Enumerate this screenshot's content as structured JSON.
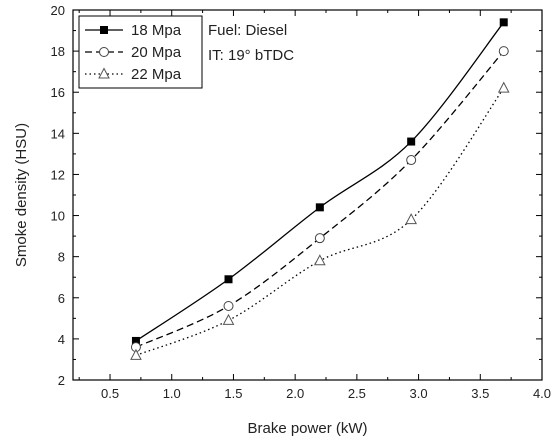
{
  "chart_data": {
    "type": "line",
    "xlabel": "Brake power (kW)",
    "ylabel": "Smoke density (HSU)",
    "xlim": [
      0.2,
      4.0
    ],
    "ylim": [
      2,
      20
    ],
    "xticks": [
      0.5,
      1.0,
      1.5,
      2.0,
      2.5,
      3.0,
      3.5,
      4.0
    ],
    "xtick_labels": [
      "0.5",
      "1.0",
      "1.5",
      "2.0",
      "2.5",
      "3.0",
      "3.5",
      "4.0"
    ],
    "yticks": [
      2,
      4,
      6,
      8,
      10,
      12,
      14,
      16,
      18,
      20
    ],
    "ytick_labels": [
      "2",
      "4",
      "6",
      "8",
      "10",
      "12",
      "14",
      "16",
      "18",
      "20"
    ],
    "grid": false,
    "legend_position": "top-left",
    "x": [
      0.71,
      1.46,
      2.2,
      2.94,
      3.69
    ],
    "series": [
      {
        "name": "18 Mpa",
        "values": [
          3.9,
          6.9,
          10.4,
          13.6,
          19.4
        ],
        "marker": "filled-square",
        "line": "solid",
        "color": "#000000"
      },
      {
        "name": "20 Mpa",
        "values": [
          3.6,
          5.6,
          8.9,
          12.7,
          18.0
        ],
        "marker": "open-circle",
        "line": "dashed",
        "color": "#000000"
      },
      {
        "name": "22 Mpa",
        "values": [
          3.2,
          4.9,
          7.8,
          9.8,
          16.2
        ],
        "marker": "open-triangle",
        "line": "dotted",
        "color": "#000000"
      }
    ],
    "annotations": [
      "Fuel: Diesel",
      "IT: 19° bTDC"
    ]
  }
}
